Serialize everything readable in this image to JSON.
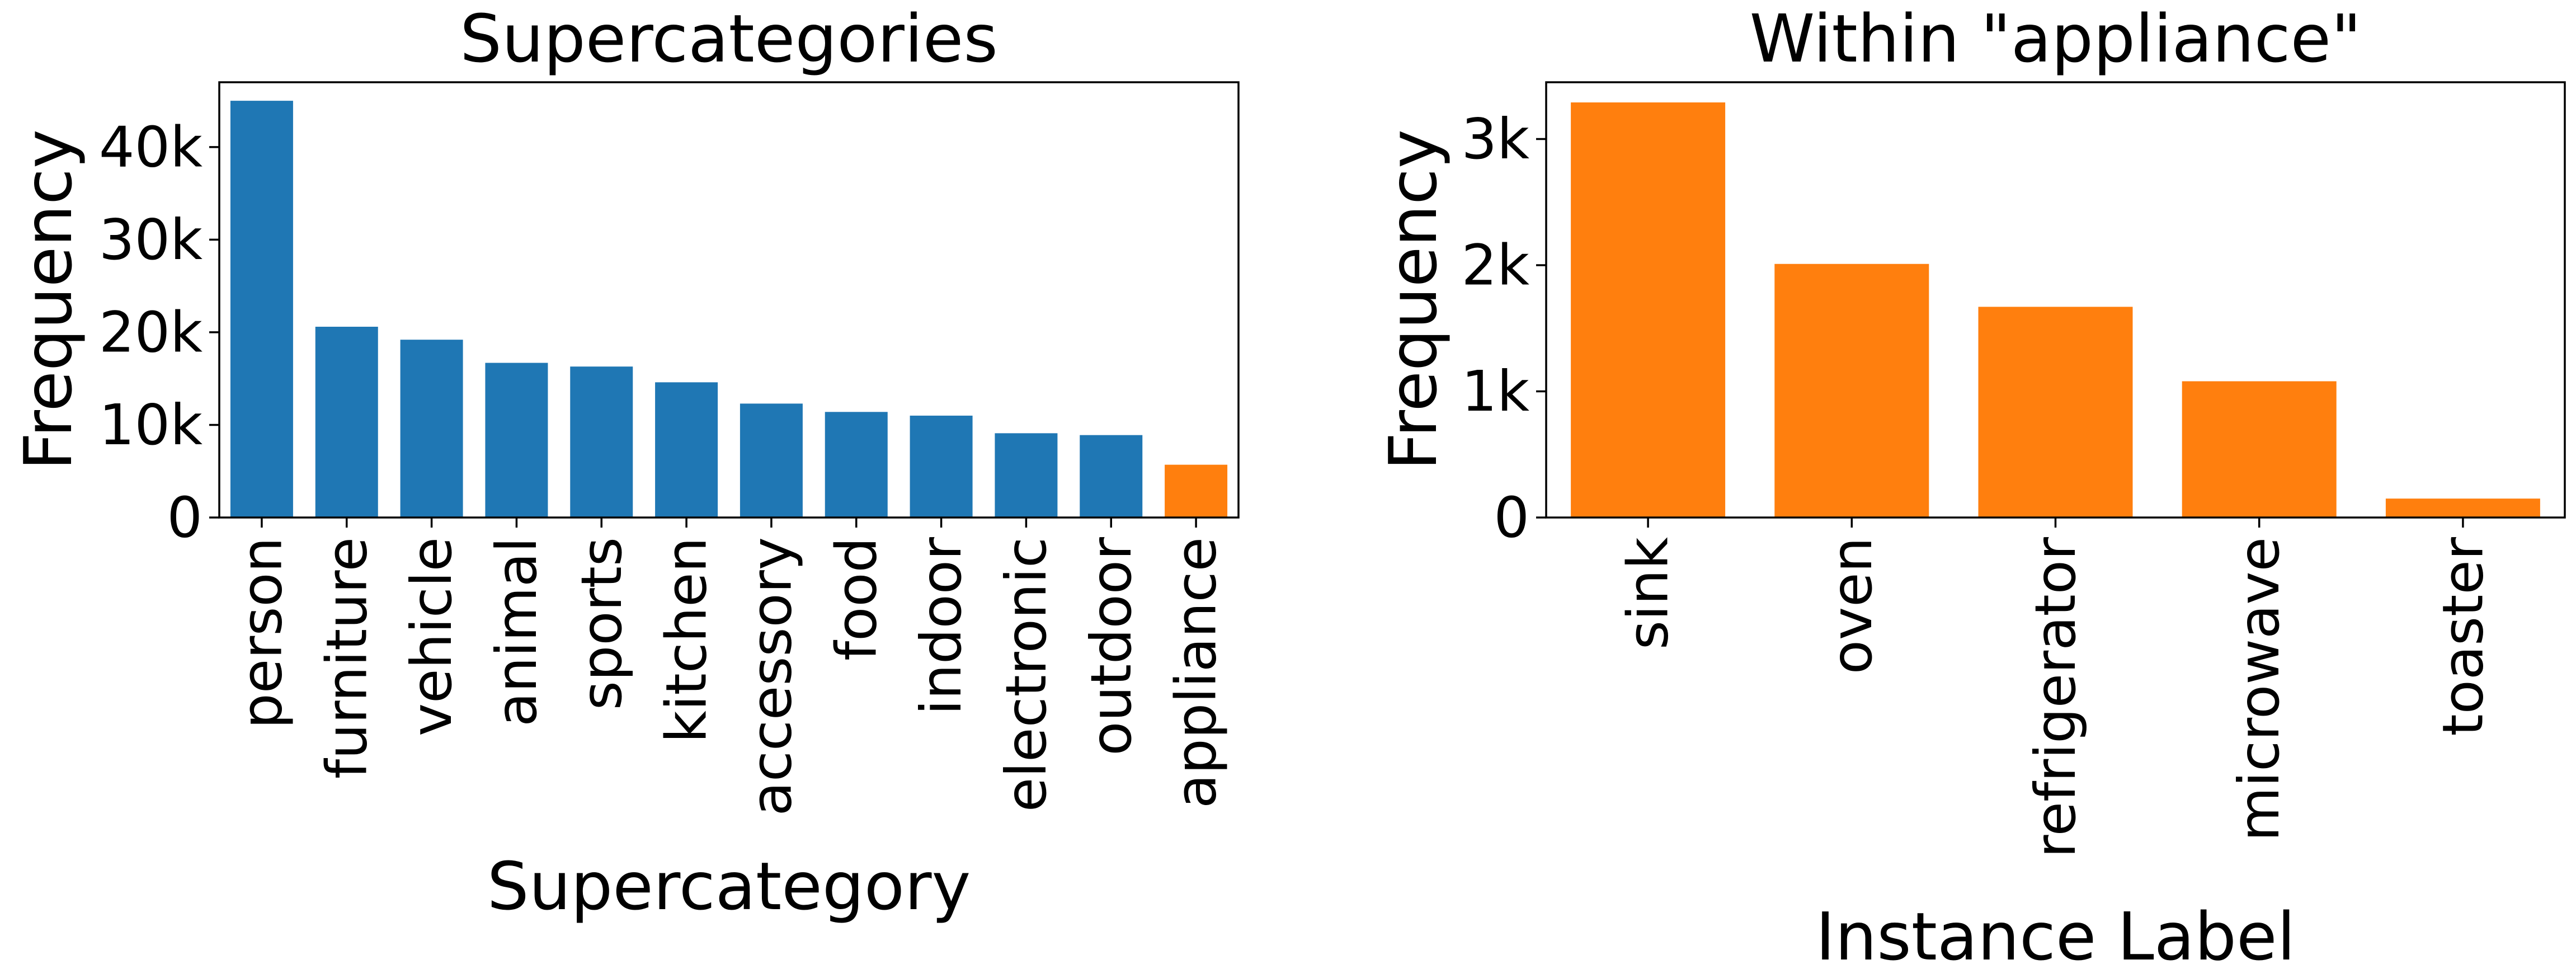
{
  "chart_data": [
    {
      "type": "bar",
      "title": "Supercategories",
      "xlabel": "Supercategory",
      "ylabel": "Frequency",
      "categories": [
        "person",
        "furniture",
        "vehicle",
        "animal",
        "sports",
        "kitchen",
        "accessory",
        "food",
        "indoor",
        "electronic",
        "outdoor",
        "appliance"
      ],
      "values": [
        45000,
        20600,
        19200,
        16700,
        16300,
        14600,
        12300,
        11400,
        11000,
        9100,
        8900,
        5700
      ],
      "bar_colors": [
        "#1f77b4",
        "#1f77b4",
        "#1f77b4",
        "#1f77b4",
        "#1f77b4",
        "#1f77b4",
        "#1f77b4",
        "#1f77b4",
        "#1f77b4",
        "#1f77b4",
        "#1f77b4",
        "#ff7f0e"
      ],
      "ylim": [
        0,
        47000
      ],
      "yticks": [
        0,
        10000,
        20000,
        30000,
        40000
      ],
      "ytick_labels": [
        "0",
        "10k",
        "20k",
        "30k",
        "40k"
      ],
      "grid": false,
      "legend": "none"
    },
    {
      "type": "bar",
      "title": "Within \"appliance\"",
      "xlabel": "Instance Label",
      "ylabel": "Frequency",
      "categories": [
        "sink",
        "oven",
        "refrigerator",
        "microwave",
        "toaster"
      ],
      "values": [
        3290,
        2010,
        1670,
        1080,
        150
      ],
      "bar_colors": [
        "#ff7f0e",
        "#ff7f0e",
        "#ff7f0e",
        "#ff7f0e",
        "#ff7f0e"
      ],
      "ylim": [
        0,
        3450
      ],
      "yticks": [
        0,
        1000,
        2000,
        3000
      ],
      "ytick_labels": [
        "0",
        "1k",
        "2k",
        "3k"
      ],
      "grid": false,
      "legend": "none"
    }
  ]
}
